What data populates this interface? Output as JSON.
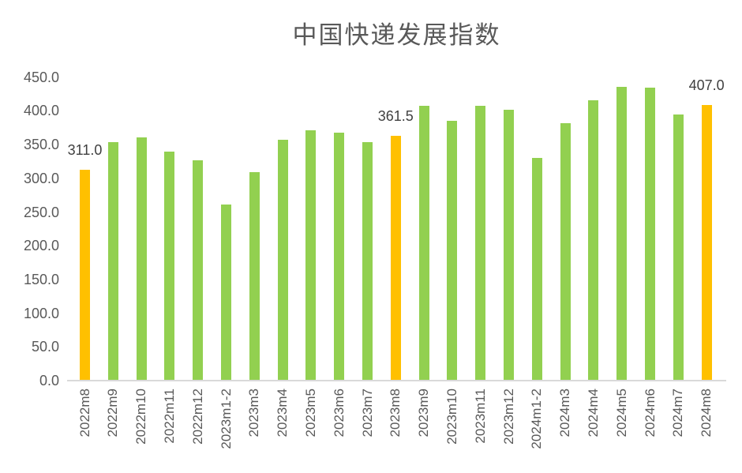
{
  "page": {
    "background": "#FFFFFF"
  },
  "chart_data": {
    "type": "bar",
    "title": "中国快递发展指数",
    "xlabel": "",
    "ylabel": "",
    "legend": "none",
    "grid": "off",
    "ylim": [
      0,
      450
    ],
    "ytick_interval": 50,
    "ytick_labels": [
      "0.0",
      "50.0",
      "100.0",
      "150.0",
      "200.0",
      "250.0",
      "300.0",
      "350.0",
      "400.0",
      "450.0"
    ],
    "categories": [
      "2022m8",
      "2022m9",
      "2022m10",
      "2022m11",
      "2022m12",
      "2023m1-2",
      "2023m3",
      "2023m4",
      "2023m5",
      "2023m6",
      "2023m7",
      "2023m8",
      "2023m9",
      "2023m10",
      "2023m11",
      "2023m12",
      "2024m1-2",
      "2024m3",
      "2024m4",
      "2024m5",
      "2024m6",
      "2024m7",
      "2024m8"
    ],
    "values": [
      311.0,
      353.0,
      359.0,
      338.0,
      326.0,
      259.5,
      307.5,
      355.5,
      370.5,
      366.0,
      352.0,
      361.5,
      406.0,
      383.5,
      406.0,
      400.0,
      328.5,
      381.0,
      415.0,
      434.0,
      433.0,
      393.0,
      407.0
    ],
    "point_labels": [
      "311.0",
      "",
      "",
      "",
      "",
      "",
      "",
      "",
      "",
      "",
      "",
      "361.5",
      "",
      "",
      "",
      "",
      "",
      "",
      "",
      "",
      "",
      "",
      "407.0"
    ],
    "highlight_indices": [
      0,
      11,
      22
    ],
    "colors": {
      "bar": "#92D050",
      "highlight": "#FFC000",
      "axis_line": "#D9D9D9",
      "axis_text": "#595959",
      "data_label_text": "#404040",
      "title_text": "#595959"
    }
  }
}
